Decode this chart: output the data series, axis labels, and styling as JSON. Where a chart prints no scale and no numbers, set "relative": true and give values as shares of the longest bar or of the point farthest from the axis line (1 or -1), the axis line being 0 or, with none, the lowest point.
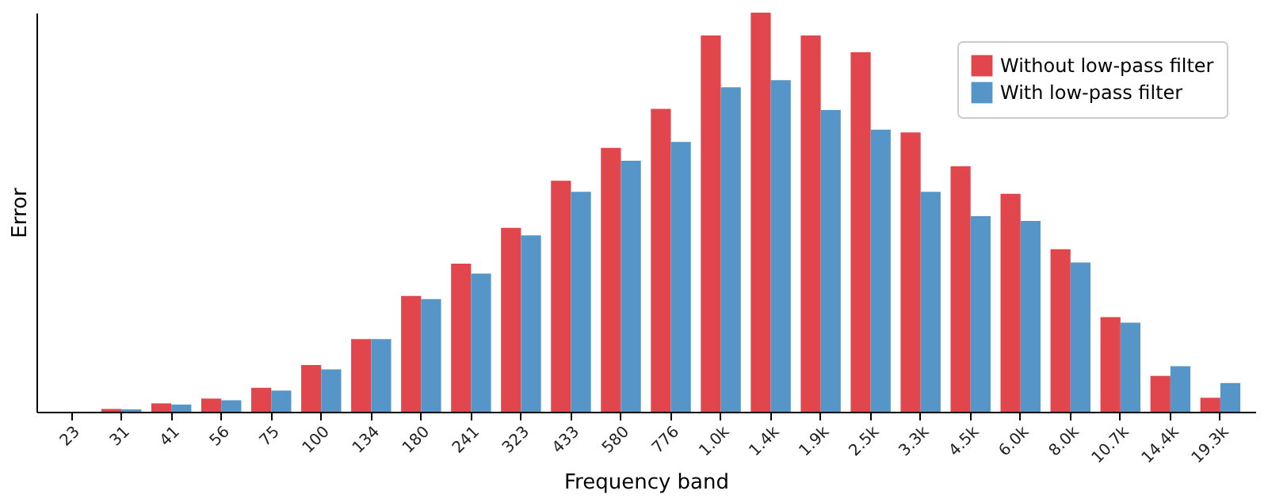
{
  "chart_data": {
    "type": "bar",
    "relative": true,
    "xlabel": "Frequency band",
    "ylabel": "Error",
    "legend": "top right",
    "grid": false,
    "categories": [
      "23",
      "31",
      "41",
      "56",
      "75",
      "100",
      "134",
      "180",
      "241",
      "323",
      "433",
      "580",
      "776",
      "1.0k",
      "1.4k",
      "1.9k",
      "2.5k",
      "3.3k",
      "4.5k",
      "6.0k",
      "8.0k",
      "10.7k",
      "14.4k",
      "19.3k"
    ],
    "series": [
      {
        "name": "Without low-pass filter",
        "color": "#e0464b",
        "values": [
          0,
          0.007,
          0.021,
          0.033,
          0.06,
          0.117,
          0.182,
          0.29,
          0.371,
          0.461,
          0.579,
          0.661,
          0.759,
          0.943,
          1,
          0.943,
          0.901,
          0.7,
          0.615,
          0.546,
          0.407,
          0.237,
          0.09,
          0.035
        ]
      },
      {
        "name": "With low-pass filter",
        "color": "#5595c7",
        "values": [
          0,
          0.006,
          0.018,
          0.029,
          0.053,
          0.106,
          0.182,
          0.282,
          0.346,
          0.442,
          0.551,
          0.629,
          0.676,
          0.813,
          0.831,
          0.756,
          0.707,
          0.551,
          0.49,
          0.478,
          0.374,
          0.223,
          0.114,
          0.072
        ]
      }
    ]
  }
}
